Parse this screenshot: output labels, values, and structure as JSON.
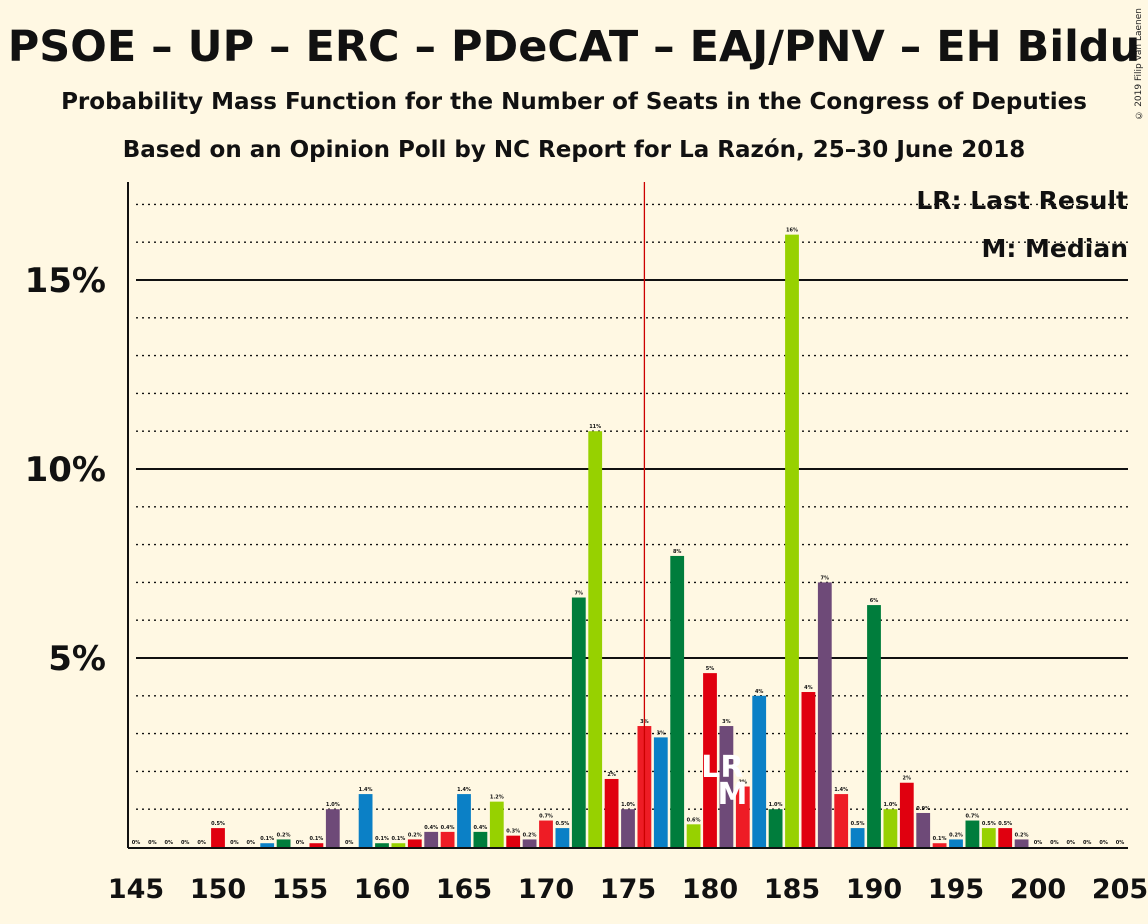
{
  "header": {
    "title": "PSOE – UP – ERC – PDeCAT – EAJ/PNV – EH Bildu",
    "subtitle": "Probability Mass Function for the Number of Seats in the Congress of Deputies",
    "source": "Based on an Opinion Poll by NC Report for La Razón, 25–30 June 2018",
    "copyright": "© 2019 Filip van Laenen"
  },
  "legend": {
    "last_result": "LR: Last Result",
    "median": "M: Median"
  },
  "markers": {
    "last_result_seats": 176,
    "lr_glyph": "LR",
    "median_seats": 181,
    "median_glyph": "M"
  },
  "colors": {
    "background": "#fff8e3",
    "majority_line": "#cc0000",
    "palette": [
      "#e0000f",
      "#6e4a78",
      "#ee1c25",
      "#0b80c6",
      "#007d3c",
      "#97d100"
    ]
  },
  "chart_data": {
    "type": "bar",
    "x": [
      145,
      146,
      147,
      148,
      149,
      150,
      151,
      152,
      153,
      154,
      155,
      156,
      157,
      158,
      159,
      160,
      161,
      162,
      163,
      164,
      165,
      166,
      167,
      168,
      169,
      170,
      171,
      172,
      173,
      174,
      175,
      176,
      177,
      178,
      179,
      180,
      181,
      182,
      183,
      184,
      185,
      186,
      187,
      188,
      189,
      190,
      191,
      192,
      193,
      194,
      195,
      196,
      197,
      198,
      199,
      200,
      201,
      202,
      203,
      204,
      205
    ],
    "values": [
      0,
      0,
      0,
      0,
      0,
      0.5,
      0,
      0,
      0.1,
      0.2,
      0,
      0.1,
      1.0,
      0,
      1.4,
      0.1,
      0.1,
      0.2,
      0.4,
      0.4,
      1.4,
      0.4,
      1.2,
      0.3,
      0.2,
      0.7,
      0.5,
      6.6,
      11,
      1.8,
      1.0,
      3.2,
      2.9,
      7.7,
      0.6,
      4.6,
      3.2,
      1.6,
      4.0,
      1.0,
      16.2,
      4.1,
      7.0,
      1.4,
      0.5,
      6.4,
      1.0,
      1.7,
      0.9,
      0.1,
      0.2,
      0.7,
      0.5,
      0.5,
      0.2,
      0,
      0,
      0,
      0,
      0,
      0
    ],
    "labels": [
      "0%",
      "0%",
      "0%",
      "0%",
      "0%",
      "0.5%",
      "0%",
      "0%",
      "0.1%",
      "0.2%",
      "0%",
      "0.1%",
      "1.0%",
      "0%",
      "1.4%",
      "0.1%",
      "0.1%",
      "0.2%",
      "0.4%",
      "0.4%",
      "1.4%",
      "0.4%",
      "1.2%",
      "0.3%",
      "0.2%",
      "0.7%",
      "0.5%",
      "7%",
      "11%",
      "2%",
      "1.0%",
      "3%",
      "3%",
      "8%",
      "0.6%",
      "5%",
      "3%",
      "2%",
      "4%",
      "1.0%",
      "16%",
      "4%",
      "7%",
      "1.4%",
      "0.5%",
      "6%",
      "1.0%",
      "2%",
      "0.9%",
      "0.1%",
      "0.2%",
      "0.7%",
      "0.5%",
      "0.5%",
      "0.2%",
      "0%",
      "0%",
      "0%",
      "0%",
      "0%",
      "0%"
    ],
    "xlim": [
      145,
      205
    ],
    "ylim": [
      0,
      17.5
    ],
    "x_ticks": [
      "145",
      "150",
      "155",
      "160",
      "165",
      "170",
      "175",
      "180",
      "185",
      "190",
      "195",
      "200",
      "205"
    ],
    "y_ticks": [
      "5%",
      "10%",
      "15%"
    ],
    "grid": true,
    "legend_position": "top-right"
  }
}
